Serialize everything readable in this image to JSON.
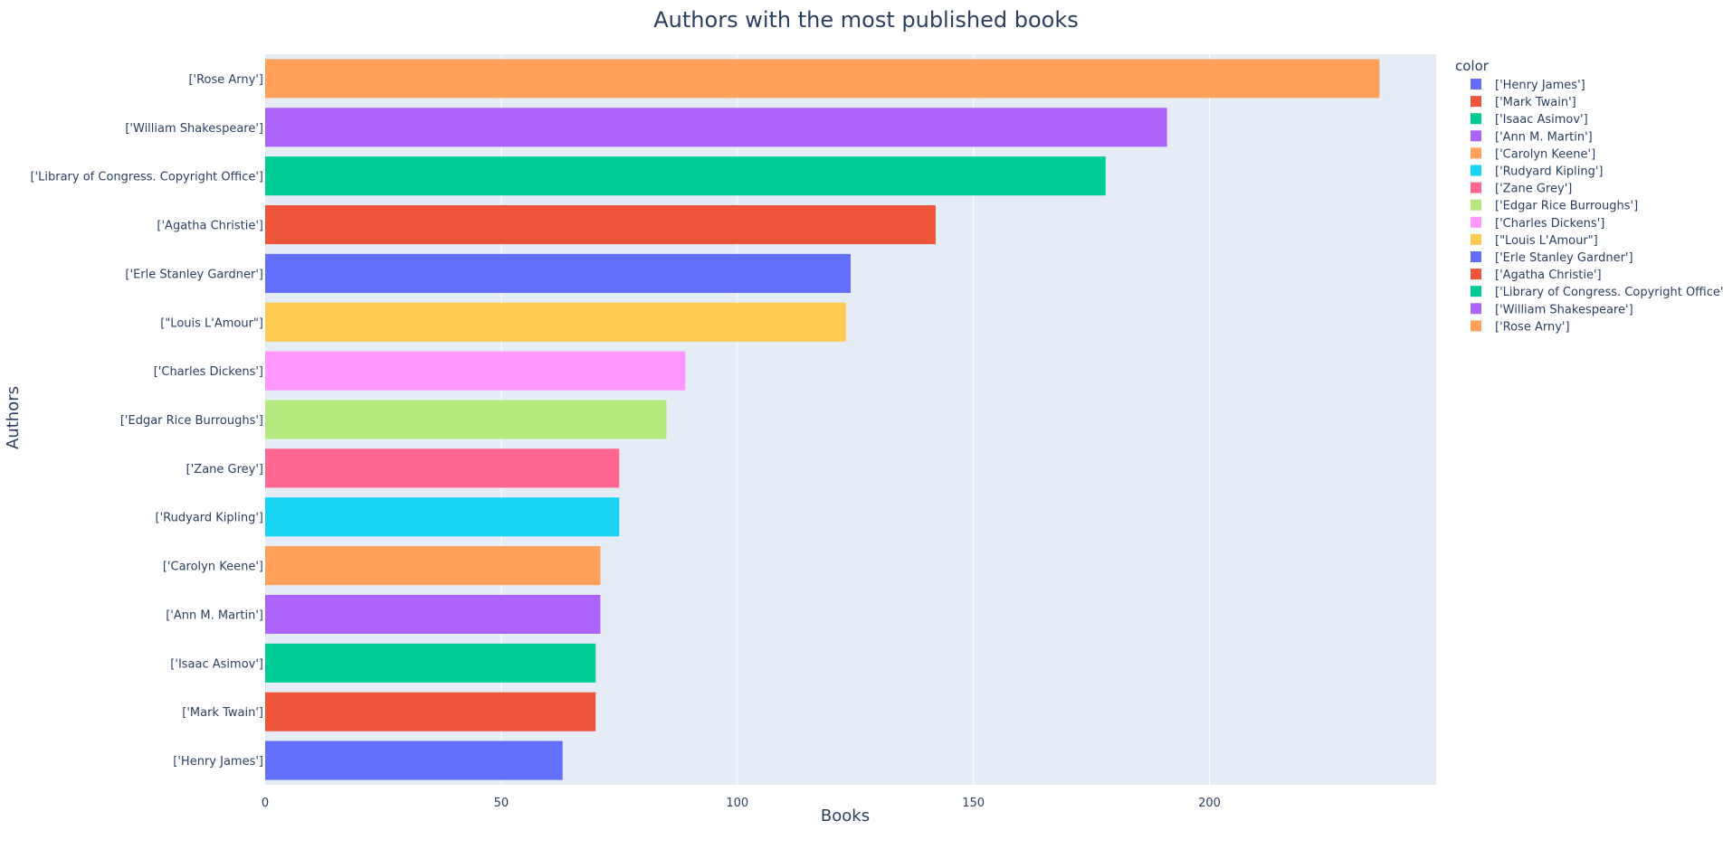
{
  "chart_data": {
    "type": "bar",
    "orientation": "horizontal",
    "title": "Authors with the most published books",
    "xlabel": "Books",
    "ylabel": "Authors",
    "xlim": [
      0,
      248
    ],
    "xticks": [
      0,
      50,
      100,
      150,
      200
    ],
    "grid": true,
    "legend": {
      "title": "color",
      "placement": "right"
    },
    "categories": [
      "['Henry James']",
      "['Mark Twain']",
      "['Isaac Asimov']",
      "['Ann M. Martin']",
      "['Carolyn Keene']",
      "['Rudyard Kipling']",
      "['Zane Grey']",
      "['Edgar Rice Burroughs']",
      "['Charles Dickens']",
      "[\"Louis L'Amour\"]",
      "['Erle Stanley Gardner']",
      "['Agatha Christie']",
      "['Library of Congress. Copyright Office']",
      "['William Shakespeare']",
      "['Rose Arny']"
    ],
    "values": [
      63,
      70,
      70,
      71,
      71,
      75,
      75,
      85,
      89,
      123,
      124,
      142,
      178,
      191,
      236
    ],
    "colors": [
      "#636efa",
      "#ef553b",
      "#00cc96",
      "#ab63fa",
      "#ffa15a",
      "#19d3f3",
      "#ff6692",
      "#b6e880",
      "#ff97ff",
      "#fecb52",
      "#636efa",
      "#ef553b",
      "#00cc96",
      "#ab63fa",
      "#ffa15a"
    ]
  },
  "style": {
    "plot_bg": "#e5ecf6",
    "grid_color": "#ffffff",
    "text_color": "#2a3f5f"
  }
}
